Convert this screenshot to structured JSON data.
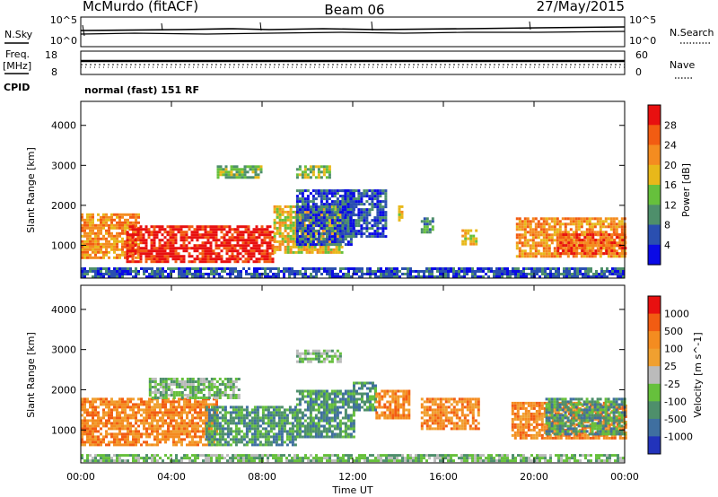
{
  "header": {
    "site": "McMurdo (fitACF)",
    "beam": "Beam 06",
    "date": "27/May/2015"
  },
  "top_panels": {
    "nsky_label": "N.Sky",
    "nsky_ticks": [
      "10^5",
      "10^0"
    ],
    "nsearch_label": "N.Search",
    "nsearch_ticks": [
      "10^5",
      "10^0"
    ],
    "freq_label_1": "Freq.",
    "freq_label_2": "[MHz]",
    "freq_ticks": [
      "18",
      "8"
    ],
    "nave_label": "Nave",
    "nave_ticks": [
      "60",
      "0"
    ],
    "cpid_label": "CPID",
    "cpid_text": "normal (fast) 151 RF"
  },
  "axes": {
    "ylabel": "Slant Range [km]",
    "xlabel": "Time UT",
    "y_ticks": [
      "4000",
      "3000",
      "2000",
      "1000"
    ],
    "x_ticks": [
      "00:00",
      "04:00",
      "08:00",
      "12:00",
      "16:00",
      "20:00",
      "00:00"
    ]
  },
  "colors": {
    "power": [
      "#0a0ae6",
      "#2a4fb0",
      "#4e8f6b",
      "#66c03c",
      "#e8b81a",
      "#f48c20",
      "#f25c12",
      "#e81010"
    ],
    "velocity": [
      "#2233bb",
      "#3f6fa0",
      "#4e8f6b",
      "#66c03c",
      "#bbbbbb",
      "#f0a030",
      "#f48c20",
      "#f25c12",
      "#e81010"
    ]
  },
  "chart_data": [
    {
      "type": "heatmap",
      "title": "",
      "xlabel": "",
      "ylabel": "Slant Range [km]",
      "xlim": [
        0,
        24
      ],
      "ylim": [
        180,
        4600
      ],
      "colorbar_label": "Power [dB]",
      "colorbar_ticks": [
        "28",
        "24",
        "20",
        "16",
        "12",
        "8",
        "4"
      ],
      "regions": [
        {
          "t0": 0.0,
          "t1": 2.5,
          "r0": 700,
          "r1": 1800,
          "level": 5
        },
        {
          "t0": 2.0,
          "t1": 8.5,
          "r0": 600,
          "r1": 1500,
          "level": 7
        },
        {
          "t0": 8.5,
          "t1": 11.5,
          "r0": 800,
          "r1": 2000,
          "level": 4
        },
        {
          "t0": 9.5,
          "t1": 12.0,
          "r0": 1000,
          "r1": 2400,
          "level": 1
        },
        {
          "t0": 6.0,
          "t1": 8.0,
          "r0": 2700,
          "r1": 3000,
          "level": 3
        },
        {
          "t0": 9.5,
          "t1": 11.0,
          "r0": 2700,
          "r1": 3000,
          "level": 3
        },
        {
          "t0": 11.5,
          "t1": 13.5,
          "r0": 1200,
          "r1": 2400,
          "level": 1
        },
        {
          "t0": 14.0,
          "t1": 14.2,
          "r0": 1600,
          "r1": 2000,
          "level": 4
        },
        {
          "t0": 15.0,
          "t1": 15.5,
          "r0": 1300,
          "r1": 1700,
          "level": 2
        },
        {
          "t0": 16.8,
          "t1": 17.4,
          "r0": 1000,
          "r1": 1400,
          "level": 4
        },
        {
          "t0": 19.2,
          "t1": 24.0,
          "r0": 700,
          "r1": 1700,
          "level": 5
        },
        {
          "t0": 21.0,
          "t1": 24.0,
          "r0": 800,
          "r1": 1300,
          "level": 6
        },
        {
          "t0": 0.0,
          "t1": 24.0,
          "r0": 200,
          "r1": 450,
          "level": 1
        }
      ]
    },
    {
      "type": "heatmap",
      "title": "",
      "xlabel": "Time UT",
      "ylabel": "Slant Range [km]",
      "xlim": [
        0,
        24
      ],
      "ylim": [
        180,
        4600
      ],
      "colorbar_label": "Velocity [m s^-1]",
      "colorbar_ticks": [
        "1000",
        "500",
        "100",
        "25",
        "-25",
        "-100",
        "-500",
        "-1000"
      ],
      "regions": [
        {
          "t0": 0.0,
          "t1": 6.0,
          "r0": 600,
          "r1": 1800,
          "level": 6
        },
        {
          "t0": 5.5,
          "t1": 9.5,
          "r0": 600,
          "r1": 1600,
          "level": 2
        },
        {
          "t0": 9.5,
          "t1": 12.0,
          "r0": 800,
          "r1": 2000,
          "level": 2
        },
        {
          "t0": 3.0,
          "t1": 7.0,
          "r0": 1800,
          "r1": 2300,
          "level": 3
        },
        {
          "t0": 9.5,
          "t1": 11.5,
          "r0": 2700,
          "r1": 3000,
          "level": 3
        },
        {
          "t0": 12.0,
          "t1": 13.0,
          "r0": 1500,
          "r1": 2200,
          "level": 2
        },
        {
          "t0": 13.0,
          "t1": 14.5,
          "r0": 1300,
          "r1": 2000,
          "level": 6
        },
        {
          "t0": 15.0,
          "t1": 17.5,
          "r0": 1000,
          "r1": 1800,
          "level": 6
        },
        {
          "t0": 19.0,
          "t1": 24.0,
          "r0": 800,
          "r1": 1700,
          "level": 6
        },
        {
          "t0": 20.5,
          "t1": 24.0,
          "r0": 900,
          "r1": 1800,
          "level": 2
        },
        {
          "t0": 0.0,
          "t1": 24.0,
          "r0": 200,
          "r1": 400,
          "level": 3
        }
      ]
    }
  ]
}
